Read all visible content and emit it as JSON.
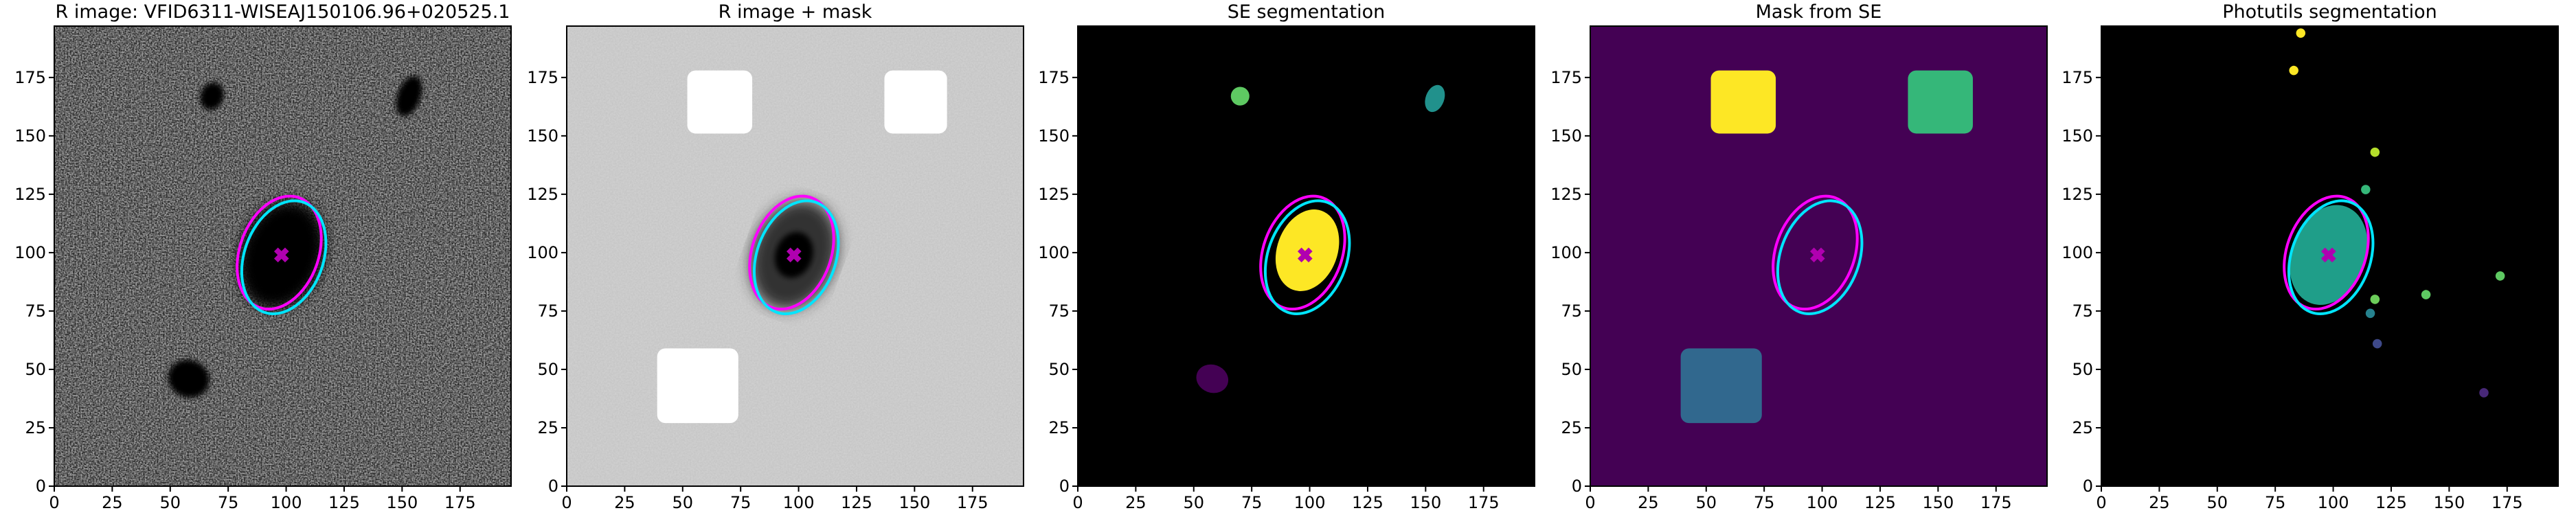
{
  "chart_data": [
    {
      "type": "image",
      "title": "R image: VFID6311-WISEAJ150106.96+020525.1",
      "xlim": [
        0,
        197
      ],
      "ylim": [
        0,
        197
      ],
      "xticks": [
        0,
        25,
        50,
        75,
        100,
        125,
        150,
        175
      ],
      "yticks": [
        0,
        25,
        50,
        75,
        100,
        125,
        150,
        175
      ]
    },
    {
      "type": "image",
      "title": "R image + mask",
      "xlim": [
        0,
        197
      ],
      "ylim": [
        0,
        197
      ],
      "xticks": [
        0,
        25,
        50,
        75,
        100,
        125,
        150,
        175
      ],
      "yticks": [
        0,
        25,
        50,
        75,
        100,
        125,
        150,
        175
      ]
    },
    {
      "type": "image",
      "title": "SE segmentation",
      "xlim": [
        0,
        197
      ],
      "ylim": [
        0,
        197
      ],
      "xticks": [
        0,
        25,
        50,
        75,
        100,
        125,
        150,
        175
      ],
      "yticks": [
        0,
        25,
        50,
        75,
        100,
        125,
        150,
        175
      ]
    },
    {
      "type": "image",
      "title": "Mask from SE",
      "xlim": [
        0,
        197
      ],
      "ylim": [
        0,
        197
      ],
      "xticks": [
        0,
        25,
        50,
        75,
        100,
        125,
        150,
        175
      ],
      "yticks": [
        0,
        25,
        50,
        75,
        100,
        125,
        150,
        175
      ]
    },
    {
      "type": "image",
      "title": "Photutils segmentation",
      "xlim": [
        0,
        197
      ],
      "ylim": [
        0,
        197
      ],
      "xticks": [
        0,
        25,
        50,
        75,
        100,
        125,
        150,
        175
      ],
      "yticks": [
        0,
        25,
        50,
        75,
        100,
        125,
        150,
        175
      ]
    }
  ]
}
